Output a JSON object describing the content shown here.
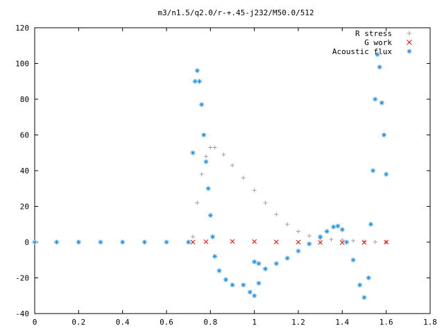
{
  "chart_data": {
    "type": "scatter",
    "title": "m3/n1.5/q2.0/r-+.45-j232/M50.0/512",
    "xlabel": "",
    "ylabel": "",
    "xlim": [
      0,
      1.8
    ],
    "ylim": [
      -40,
      120
    ],
    "x_ticks": [
      "0",
      "0.2",
      "0.4",
      "0.6",
      "0.8",
      "1",
      "1.2",
      "1.4",
      "1.6",
      "1.8"
    ],
    "y_ticks": [
      "-40",
      "-20",
      "0",
      "20",
      "40",
      "60",
      "80",
      "100",
      "120"
    ],
    "grid": false,
    "legend_position": "top-right",
    "series": [
      {
        "name": "R stress",
        "marker": "plus",
        "color": "#a0a0a0",
        "points": [
          [
            0.0,
            0.0
          ],
          [
            0.1,
            0.0
          ],
          [
            0.2,
            0.0
          ],
          [
            0.3,
            0.0
          ],
          [
            0.4,
            0.0
          ],
          [
            0.5,
            0.0
          ],
          [
            0.6,
            0.0
          ],
          [
            0.7,
            0.0
          ],
          [
            0.72,
            3
          ],
          [
            0.74,
            22
          ],
          [
            0.76,
            38
          ],
          [
            0.78,
            48
          ],
          [
            0.8,
            53
          ],
          [
            0.82,
            53
          ],
          [
            0.86,
            49
          ],
          [
            0.9,
            43
          ],
          [
            0.95,
            36
          ],
          [
            1.0,
            29
          ],
          [
            1.05,
            22
          ],
          [
            1.1,
            15.5
          ],
          [
            1.15,
            10
          ],
          [
            1.2,
            6
          ],
          [
            1.25,
            3.5
          ],
          [
            1.3,
            2
          ],
          [
            1.35,
            1.5
          ],
          [
            1.4,
            1.2
          ],
          [
            1.45,
            0.8
          ],
          [
            1.5,
            0.4
          ],
          [
            1.55,
            0.1
          ],
          [
            1.6,
            0.0
          ]
        ]
      },
      {
        "name": "G work",
        "marker": "cross",
        "color": "#ff0000",
        "points": [
          [
            0.72,
            0.0
          ],
          [
            0.78,
            0.2
          ],
          [
            0.9,
            0.4
          ],
          [
            1.0,
            0.3
          ],
          [
            1.1,
            0.1
          ],
          [
            1.2,
            0.0
          ],
          [
            1.3,
            -0.2
          ],
          [
            1.4,
            -0.3
          ],
          [
            1.5,
            -0.2
          ],
          [
            1.6,
            0.0
          ]
        ]
      },
      {
        "name": "Acoustic flux",
        "marker": "star",
        "color": "#1e90e6",
        "points": [
          [
            0.0,
            0.0
          ],
          [
            0.1,
            0.0
          ],
          [
            0.2,
            0.0
          ],
          [
            0.3,
            0.0
          ],
          [
            0.4,
            0.0
          ],
          [
            0.5,
            0.0
          ],
          [
            0.6,
            0.0
          ],
          [
            0.7,
            0.0
          ],
          [
            0.72,
            50
          ],
          [
            0.73,
            90
          ],
          [
            0.74,
            96
          ],
          [
            0.75,
            90
          ],
          [
            0.76,
            77
          ],
          [
            0.77,
            60
          ],
          [
            0.78,
            45
          ],
          [
            0.79,
            30
          ],
          [
            0.8,
            15
          ],
          [
            0.81,
            3
          ],
          [
            0.82,
            -8
          ],
          [
            0.84,
            -16
          ],
          [
            0.87,
            -21
          ],
          [
            0.9,
            -24
          ],
          [
            0.95,
            -24
          ],
          [
            0.98,
            -28
          ],
          [
            1.0,
            -30
          ],
          [
            1.02,
            -23
          ],
          [
            1.0,
            -11
          ],
          [
            1.02,
            -12
          ],
          [
            1.05,
            -15
          ],
          [
            1.1,
            -12
          ],
          [
            1.15,
            -9
          ],
          [
            1.2,
            -5
          ],
          [
            1.25,
            -1
          ],
          [
            1.3,
            3
          ],
          [
            1.33,
            6
          ],
          [
            1.36,
            8.5
          ],
          [
            1.38,
            9
          ],
          [
            1.4,
            7
          ],
          [
            1.42,
            0
          ],
          [
            1.45,
            -10
          ],
          [
            1.48,
            -24
          ],
          [
            1.5,
            -31
          ],
          [
            1.52,
            -20
          ],
          [
            1.53,
            10
          ],
          [
            1.54,
            40
          ],
          [
            1.55,
            80
          ],
          [
            1.56,
            105
          ],
          [
            1.57,
            98
          ],
          [
            1.58,
            78
          ],
          [
            1.59,
            60
          ],
          [
            1.6,
            38
          ]
        ]
      }
    ]
  }
}
